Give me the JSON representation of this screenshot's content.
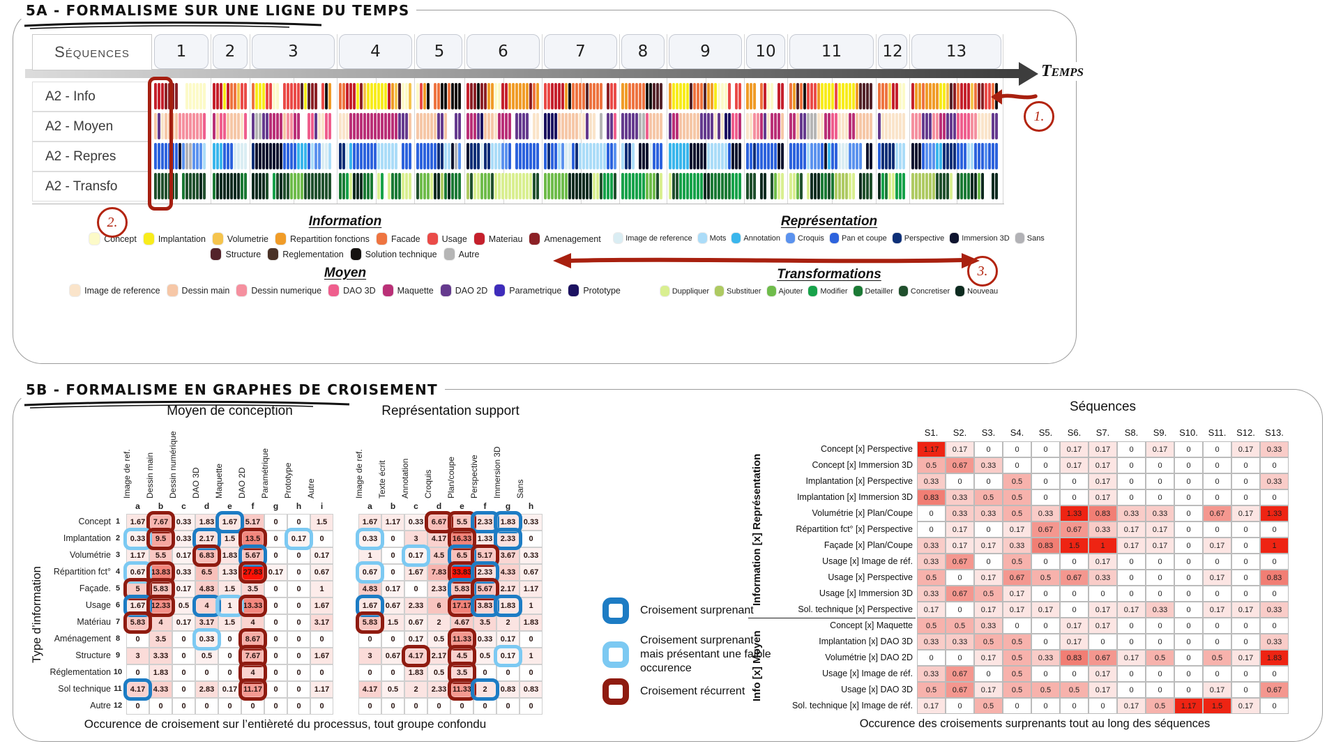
{
  "panel_a": {
    "title": "5A - FORMALISME SUR UNE LIGNE DU TEMPS",
    "sequences_label": "Séquences",
    "temps_label": "Temps",
    "sequence_numbers": [
      "1",
      "2",
      "3",
      "4",
      "5",
      "6",
      "7",
      "8",
      "9",
      "10",
      "11",
      "12",
      "13"
    ],
    "sequence_widths": [
      78,
      50,
      118,
      104,
      66,
      104,
      104,
      62,
      104,
      56,
      120,
      42,
      128
    ],
    "row_labels": [
      "A2 - Info",
      "A2 - Moyen",
      "A2 - Repres",
      "A2 - Transfo"
    ],
    "annotation_1": "1.",
    "annotation_2": "2.",
    "annotation_3": "3.",
    "legend_groups": [
      {
        "id": "legend-info",
        "title": "Information",
        "rows": [
          [
            {
              "label": "Concept",
              "color": "#fcfac8"
            },
            {
              "label": "Implantation",
              "color": "#f8ec1c"
            },
            {
              "label": "Volumetrie",
              "color": "#f5c44d"
            },
            {
              "label": "Repartition fonctions",
              "color": "#f09c28"
            },
            {
              "label": "Facade",
              "color": "#ee7440"
            },
            {
              "label": "Usage",
              "color": "#ea4b48"
            },
            {
              "label": "Materiau",
              "color": "#c5202c"
            },
            {
              "label": "Amenagement",
              "color": "#8c2126"
            }
          ],
          [
            {
              "label": "Structure",
              "color": "#53232a"
            },
            {
              "label": "Reglementation",
              "color": "#4a3126"
            },
            {
              "label": "Solution technique",
              "color": "#151210"
            },
            {
              "label": "Autre",
              "color": "#b5b5b5"
            }
          ]
        ]
      },
      {
        "id": "legend-repres",
        "title": "Représentation",
        "rows": [
          [
            {
              "label": "Image de reference",
              "color": "#daedf3"
            },
            {
              "label": "Mots",
              "color": "#abdcf8"
            },
            {
              "label": "Annotation",
              "color": "#3ab6ec"
            },
            {
              "label": "Croquis",
              "color": "#5b92ee"
            },
            {
              "label": "Pan et coupe",
              "color": "#2d63dd"
            },
            {
              "label": "Perspective",
              "color": "#0d2f77"
            },
            {
              "label": "Immersion 3D",
              "color": "#0e142f"
            },
            {
              "label": "Sans",
              "color": "#b2b2b6"
            }
          ]
        ]
      },
      {
        "id": "legend-moyen",
        "title": "Moyen",
        "rows": [
          [
            {
              "label": "Image de reference",
              "color": "#fae4ca"
            },
            {
              "label": "Dessin main",
              "color": "#f6c7a7"
            },
            {
              "label": "Dessin numerique",
              "color": "#f5909f"
            },
            {
              "label": "DAO 3D",
              "color": "#ef5e8d"
            },
            {
              "label": "Maquette",
              "color": "#ba3077"
            },
            {
              "label": "DAO 2D",
              "color": "#653a8e"
            },
            {
              "label": "Parametrique",
              "color": "#3e2cbb"
            },
            {
              "label": "Prototype",
              "color": "#1c1261"
            }
          ]
        ]
      },
      {
        "id": "legend-transfo",
        "title": "Transformations",
        "rows": [
          [
            {
              "label": "Duppliquer",
              "color": "#d9ef90"
            },
            {
              "label": "Substituer",
              "color": "#aeca62"
            },
            {
              "label": "Ajouter",
              "color": "#6fbc4b"
            },
            {
              "label": "Modifier",
              "color": "#17a24a"
            },
            {
              "label": "Detailler",
              "color": "#1b7a35"
            },
            {
              "label": "Concretiser",
              "color": "#20502d"
            },
            {
              "label": "Nouveau",
              "color": "#0d2b20"
            }
          ]
        ]
      }
    ],
    "strip_rows": [
      {
        "key": "info",
        "seed": 7
      },
      {
        "key": "moyen",
        "seed": 13
      },
      {
        "key": "repres",
        "seed": 29
      },
      {
        "key": "transfo",
        "seed": 41
      }
    ],
    "strip_palettes": {
      "info": [
        [
          "#fcfac8",
          1.2
        ],
        [
          "#f8ec1c",
          1.6
        ],
        [
          "#f5c44d",
          1.2
        ],
        [
          "#f09c28",
          2.6
        ],
        [
          "#ee7440",
          2.2
        ],
        [
          "#ea4b48",
          2.8
        ],
        [
          "#c5202c",
          2.6
        ],
        [
          "#8c2126",
          1.2
        ],
        [
          "#53232a",
          0.9
        ],
        [
          "#151210",
          0.9
        ]
      ],
      "moyen": [
        [
          "#fae4ca",
          2.2
        ],
        [
          "#f6c7a7",
          2.4
        ],
        [
          "#f5909f",
          1.0
        ],
        [
          "#ef5e8d",
          1.1
        ],
        [
          "#ba3077",
          1.8
        ],
        [
          "#653a8e",
          4.6
        ],
        [
          "#b5b5b5",
          0.8
        ],
        [
          "#1c1261",
          0.3
        ]
      ],
      "repres": [
        [
          "#daedf3",
          1.6
        ],
        [
          "#abdcf8",
          1.5
        ],
        [
          "#3ab6ec",
          0.7
        ],
        [
          "#5b92ee",
          1.6
        ],
        [
          "#2d63dd",
          4.2
        ],
        [
          "#0d2f77",
          1.4
        ],
        [
          "#0e142f",
          1.4
        ],
        [
          "#b2b2b6",
          0.4
        ]
      ],
      "transfo": [
        [
          "#d9ef90",
          2.4
        ],
        [
          "#aeca62",
          1.4
        ],
        [
          "#6fbc4b",
          1.4
        ],
        [
          "#17a24a",
          1.4
        ],
        [
          "#1b7a35",
          1.8
        ],
        [
          "#20502d",
          2.0
        ],
        [
          "#0d2b20",
          2.0
        ]
      ],
      "transfo_early": [
        [
          "#0d2b20",
          3.0
        ],
        [
          "#20502d",
          3.0
        ],
        [
          "#1b7a35",
          2.0
        ],
        [
          "#17a24a",
          0.6
        ],
        [
          "#6fbc4b",
          0.5
        ],
        [
          "#d9ef90",
          0.3
        ]
      ]
    }
  },
  "panel_b": {
    "title": "5B - FORMALISME EN GRAPHES DE CROISEMENT",
    "caption_left": "Occurence de croisement sur l’entièreté du processus, tout groupe confondu",
    "caption_right": "Occurence des croisements surprenants tout au long des séquences",
    "cross_legend": [
      {
        "type": "db",
        "label": "Croisement surprenant"
      },
      {
        "type": "lb",
        "label": "Croisement surprenant mais présentant une faible occurence"
      },
      {
        "type": "dr",
        "label": "Croisement récurrent"
      }
    ],
    "mark_colors": {
      "dr": "#8f1b10",
      "db": "#1d7cc4",
      "lb": "#7cc9f2"
    }
  },
  "chart_data": [
    {
      "type": "heatmap",
      "title": "Moyen de conception",
      "row_axis": "Type d’information",
      "columns": [
        "Image de ref.",
        "Dessin main",
        "Dessin numérique",
        "DAO 3D",
        "Maquette",
        "DAO 2D",
        "Paramétrique",
        "Prototype",
        "Autre"
      ],
      "column_letters": [
        "a",
        "b",
        "c",
        "d",
        "e",
        "f",
        "g",
        "h",
        "i"
      ],
      "rows": [
        "Concept",
        "Implantation",
        "Volumétrie",
        "Répartition fct°",
        "Façade.",
        "Usage",
        "Matériau",
        "Aménagement",
        "Structure",
        "Réglementation",
        "Sol technique",
        "Autre"
      ],
      "row_numbers": [
        "1",
        "2",
        "3",
        "4",
        "5",
        "6",
        "7",
        "8",
        "9",
        "10",
        "11",
        "12"
      ],
      "values": [
        [
          1.67,
          7.67,
          0.33,
          1.83,
          1.67,
          5.17,
          0,
          0,
          1.5
        ],
        [
          0.33,
          9.5,
          0.33,
          2.17,
          1.5,
          13.5,
          0,
          0.17,
          0
        ],
        [
          1.17,
          5.5,
          0.17,
          6.83,
          1.83,
          5.67,
          0,
          0,
          0.17
        ],
        [
          0.67,
          13.83,
          0.33,
          6.5,
          1.33,
          27.83,
          0.17,
          0,
          0.67
        ],
        [
          5,
          5.83,
          0.17,
          4.83,
          1.5,
          3.5,
          0,
          0,
          1
        ],
        [
          1.67,
          12.33,
          0.5,
          4,
          1,
          13.33,
          0,
          0,
          1.67
        ],
        [
          5.83,
          4,
          0.17,
          3.17,
          1.5,
          4,
          0,
          0,
          3.17
        ],
        [
          0,
          3.5,
          0,
          0.33,
          0,
          8.67,
          0,
          0,
          0
        ],
        [
          3,
          3.33,
          0,
          0.5,
          0,
          7.67,
          0,
          0,
          1.67
        ],
        [
          0,
          1.83,
          0,
          0,
          0,
          4,
          0,
          0,
          0
        ],
        [
          4.17,
          4.33,
          0,
          2.83,
          0.17,
          11.17,
          0,
          0,
          1.17
        ],
        [
          0,
          0,
          0,
          0,
          0,
          0,
          0,
          0,
          0
        ]
      ],
      "marks": [
        {
          "1": "dr",
          "4": "db"
        },
        {
          "0": "lb",
          "1": "dr",
          "3": "db",
          "5": "dr",
          "7": "lb"
        },
        {
          "3": "dr",
          "5": "db"
        },
        {
          "0": "lb",
          "1": "dr",
          "5": "dr"
        },
        {
          "0": "dr",
          "1": "dr"
        },
        {
          "0": "db",
          "1": "dr",
          "3": "db",
          "4": "lb",
          "5": "dr"
        },
        {
          "0": "dr"
        },
        {
          "3": "lb",
          "5": "dr"
        },
        {
          "5": "dr"
        },
        {
          "5": "dr"
        },
        {
          "0": "db",
          "5": "dr"
        },
        {}
      ]
    },
    {
      "type": "heatmap",
      "title": "Représentation support",
      "columns": [
        "Image de ref.",
        "Texte écrit",
        "Annotation",
        "Croquis",
        "Plan/coupe",
        "Perspective",
        "Immersion 3D",
        "Sans"
      ],
      "column_letters": [
        "a",
        "b",
        "c",
        "d",
        "e",
        "f",
        "g",
        "h"
      ],
      "values": [
        [
          1.67,
          1.17,
          0.33,
          6.67,
          5.5,
          2.33,
          1.83,
          0.33
        ],
        [
          0.33,
          0,
          3,
          4.17,
          16.33,
          1.33,
          2.33,
          0
        ],
        [
          1,
          0,
          0.17,
          4.5,
          6.5,
          5.17,
          3.67,
          0.33
        ],
        [
          0.67,
          0,
          1.67,
          7.83,
          33.83,
          2.33,
          4.33,
          0.67
        ],
        [
          4.83,
          0.17,
          0,
          2.33,
          5.83,
          5.67,
          2.17,
          1.17
        ],
        [
          1.67,
          0.67,
          2.33,
          6,
          17.17,
          3.83,
          1.83,
          1
        ],
        [
          5.83,
          1.5,
          0.67,
          2,
          4.67,
          3.5,
          2,
          1.83
        ],
        [
          0,
          0,
          0.17,
          0.5,
          11.33,
          0.33,
          0.17,
          0
        ],
        [
          3,
          0.67,
          4.17,
          2.17,
          4.5,
          0.5,
          0.17,
          1
        ],
        [
          0,
          0,
          1.83,
          0.5,
          3.5,
          0,
          0,
          0
        ],
        [
          4.17,
          0.5,
          2,
          2.33,
          11.33,
          2,
          0.83,
          0.83
        ],
        [
          0,
          0,
          0,
          0,
          0,
          0,
          0,
          0
        ]
      ],
      "marks": [
        {
          "3": "dr",
          "4": "dr",
          "5": "db",
          "6": "db"
        },
        {
          "0": "lb",
          "4": "dr",
          "6": "db"
        },
        {
          "2": "lb",
          "4": "db",
          "5": "dr"
        },
        {
          "0": "lb",
          "4": "dr",
          "5": "db"
        },
        {
          "4": "db",
          "5": "dr"
        },
        {
          "0": "db",
          "4": "dr",
          "5": "db",
          "6": "db"
        },
        {
          "0": "dr"
        },
        {
          "4": "dr"
        },
        {
          "2": "dr",
          "4": "dr",
          "6": "lb"
        },
        {
          "4": "dr"
        },
        {
          "4": "dr",
          "5": "db"
        },
        {}
      ]
    },
    {
      "type": "heatmap",
      "title": "Séquences",
      "columns": [
        "S1.",
        "S2.",
        "S3.",
        "S4.",
        "S5.",
        "S6.",
        "S7.",
        "S8.",
        "S9.",
        "S10.",
        "S11.",
        "S12.",
        "S13."
      ],
      "row_groups": [
        {
          "label": "Information [x] Représentation",
          "rows": [
            "Concept [x] Perspective",
            "Concept [x] Immersion 3D",
            "Implantation [x] Perspective",
            "Implantation [x] Immersion 3D",
            "Volumétrie [x] Plan/Coupe",
            "Répartition fct° [x] Perspective",
            "Façade [x] Plan/Coupe",
            "Usage [x] Image de réf.",
            "Usage [x] Perspective",
            "Usage [x] Immersion 3D",
            "Sol. technique [x] Perspective"
          ]
        },
        {
          "label": "Info [x] Moyen",
          "rows": [
            "Concept [x] Maquette",
            "Implantation [x] DAO 3D",
            "Volumétrie [x] DAO 2D",
            "Usage [x] Image de réf.",
            "Usage [x] DAO 3D",
            "Sol. technique [x] Image de réf."
          ]
        }
      ],
      "values": [
        [
          1.17,
          0.17,
          0,
          0,
          0,
          0.17,
          0.17,
          0,
          0.17,
          0,
          0,
          0.17,
          0.33
        ],
        [
          0.5,
          0.67,
          0.33,
          0,
          0,
          0.17,
          0.17,
          0,
          0,
          0,
          0,
          0,
          0
        ],
        [
          0.33,
          0,
          0,
          0.5,
          0,
          0,
          0.17,
          0,
          0,
          0,
          0,
          0,
          0.33
        ],
        [
          0.83,
          0.33,
          0.5,
          0.5,
          0,
          0,
          0.17,
          0,
          0,
          0,
          0,
          0,
          0
        ],
        [
          0,
          0.33,
          0.33,
          0.5,
          0.33,
          1.33,
          0.83,
          0.33,
          0.33,
          0,
          0.67,
          0.17,
          1.33
        ],
        [
          0,
          0.17,
          0,
          0.17,
          0.67,
          0.67,
          0.33,
          0.17,
          0.17,
          0,
          0,
          0,
          0
        ],
        [
          0.33,
          0.17,
          0.17,
          0.33,
          0.83,
          1.5,
          1,
          0.17,
          0.17,
          0,
          0.17,
          0,
          1
        ],
        [
          0.33,
          0.67,
          0,
          0.5,
          0,
          0,
          0.17,
          0,
          0,
          0,
          0,
          0,
          0
        ],
        [
          0.5,
          0,
          0.17,
          0.67,
          0.5,
          0.67,
          0.33,
          0,
          0,
          0,
          0.17,
          0,
          0.83
        ],
        [
          0.33,
          0.67,
          0.5,
          0.17,
          0,
          0,
          0,
          0,
          0,
          0,
          0,
          0,
          0
        ],
        [
          0.17,
          0,
          0.17,
          0.17,
          0.17,
          0,
          0.17,
          0.17,
          0.33,
          0,
          0.17,
          0.17,
          0.33
        ],
        [
          0.5,
          0.5,
          0.33,
          0,
          0,
          0.17,
          0.17,
          0,
          0,
          0,
          0,
          0,
          0
        ],
        [
          0.33,
          0.33,
          0.5,
          0.5,
          0,
          0.17,
          0,
          0,
          0,
          0,
          0,
          0,
          0.33
        ],
        [
          0,
          0,
          0.17,
          0.5,
          0.33,
          0.83,
          0.67,
          0.17,
          0.5,
          0,
          0.5,
          0.17,
          1.83
        ],
        [
          0.33,
          0.67,
          0,
          0.5,
          0,
          0,
          0.17,
          0,
          0,
          0,
          0,
          0,
          0
        ],
        [
          0.5,
          0.67,
          0.17,
          0.5,
          0.5,
          0.5,
          0.17,
          0,
          0,
          0,
          0.17,
          0,
          0.67
        ],
        [
          0.17,
          0,
          0.5,
          0,
          0,
          0,
          0,
          0.17,
          0.5,
          1.17,
          1.5,
          0.17,
          0
        ]
      ]
    }
  ]
}
